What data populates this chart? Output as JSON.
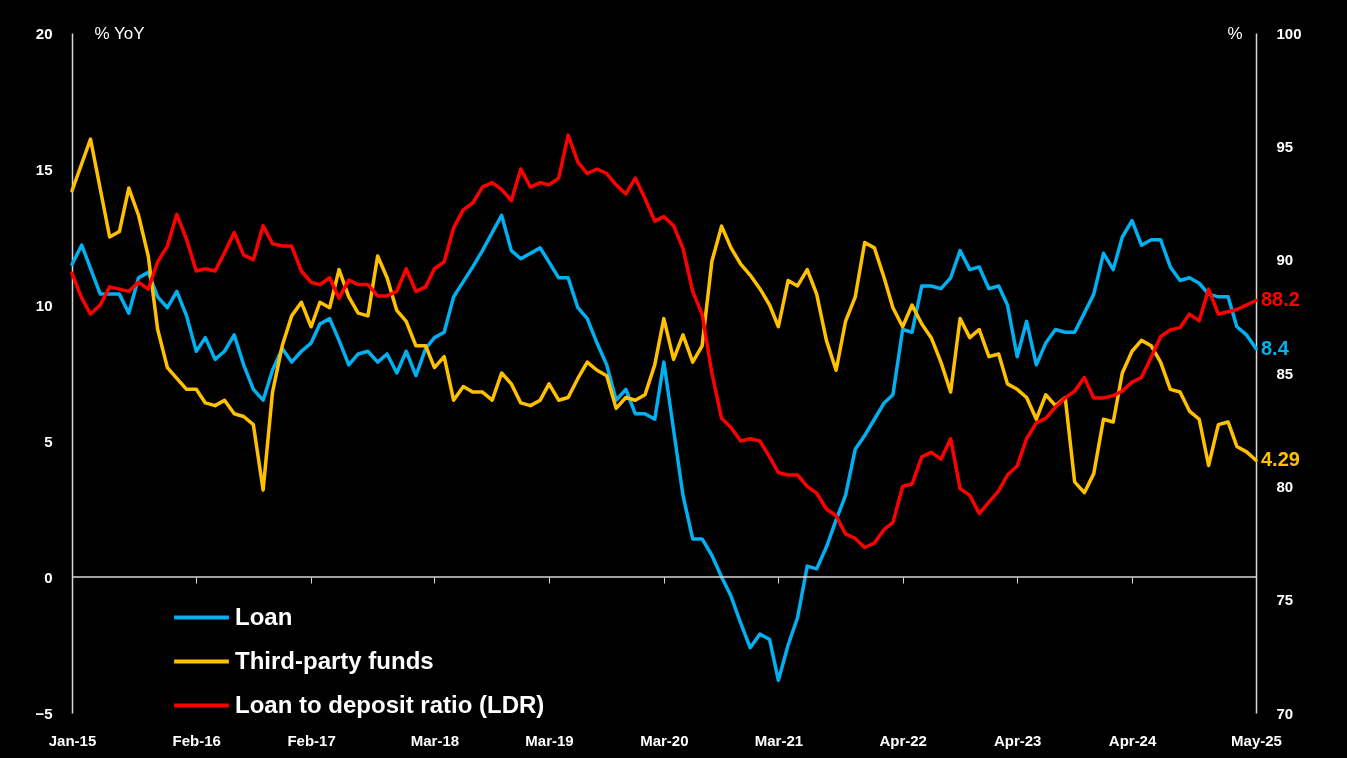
{
  "chart_data": {
    "type": "line",
    "ylabel": "% YoY",
    "y2label": "%",
    "x": [
      "2015-01",
      "2015-02",
      "2015-03",
      "2015-04",
      "2015-05",
      "2015-06",
      "2015-07",
      "2015-08",
      "2015-09",
      "2015-10",
      "2015-11",
      "2015-12",
      "2016-01",
      "2016-02",
      "2016-03",
      "2016-04",
      "2016-05",
      "2016-06",
      "2016-07",
      "2016-08",
      "2016-09",
      "2016-10",
      "2016-11",
      "2016-12",
      "2017-01",
      "2017-02",
      "2017-03",
      "2017-04",
      "2017-05",
      "2017-06",
      "2017-07",
      "2017-08",
      "2017-09",
      "2017-10",
      "2017-11",
      "2017-12",
      "2018-01",
      "2018-02",
      "2018-03",
      "2018-04",
      "2018-05",
      "2018-06",
      "2018-07",
      "2018-08",
      "2018-09",
      "2018-10",
      "2018-11",
      "2018-12",
      "2019-01",
      "2019-02",
      "2019-03",
      "2019-04",
      "2019-05",
      "2019-06",
      "2019-07",
      "2019-08",
      "2019-09",
      "2019-10",
      "2019-11",
      "2019-12",
      "2020-01",
      "2020-02",
      "2020-03",
      "2020-04",
      "2020-05",
      "2020-06",
      "2020-07",
      "2020-08",
      "2020-09",
      "2020-10",
      "2020-11",
      "2020-12",
      "2021-01",
      "2021-02",
      "2021-03",
      "2021-04",
      "2021-05",
      "2021-06",
      "2021-07",
      "2021-08",
      "2021-09",
      "2021-10",
      "2021-11",
      "2021-12",
      "2022-01",
      "2022-02",
      "2022-03",
      "2022-04",
      "2022-05",
      "2022-06",
      "2022-07",
      "2022-08",
      "2022-09",
      "2022-10",
      "2022-11",
      "2022-12",
      "2023-01",
      "2023-02",
      "2023-03",
      "2023-04",
      "2023-05",
      "2023-06",
      "2023-07",
      "2023-08",
      "2023-09",
      "2023-10",
      "2023-11",
      "2023-12",
      "2024-01",
      "2024-02",
      "2024-03",
      "2024-04",
      "2024-05",
      "2024-06",
      "2024-07",
      "2024-08",
      "2024-09",
      "2024-10",
      "2024-11",
      "2024-12",
      "2025-01",
      "2025-02",
      "2025-03",
      "2025-04",
      "2025-05"
    ],
    "xlim": [
      "2015-01",
      "2025-05"
    ],
    "xticks": [
      {
        "value": "2015-01",
        "label": "Jan-15"
      },
      {
        "value": "2016-02",
        "label": "Feb-16"
      },
      {
        "value": "2017-02",
        "label": "Feb-17"
      },
      {
        "value": "2018-03",
        "label": "Mar-18"
      },
      {
        "value": "2019-03",
        "label": "Mar-19"
      },
      {
        "value": "2020-03",
        "label": "Mar-20"
      },
      {
        "value": "2021-03",
        "label": "Mar-21"
      },
      {
        "value": "2022-04",
        "label": "Apr-22"
      },
      {
        "value": "2023-04",
        "label": "Apr-23"
      },
      {
        "value": "2024-04",
        "label": "Apr-24"
      },
      {
        "value": "2025-05",
        "label": "May-25"
      }
    ],
    "ylim": [
      -5,
      20
    ],
    "yticks": [
      -5,
      0,
      5,
      10,
      15,
      20
    ],
    "y2lim": [
      70,
      100
    ],
    "y2ticks": [
      70,
      75,
      80,
      85,
      90,
      95,
      100
    ],
    "ref_lines": [
      {
        "axis": "y",
        "value": 0,
        "color": "#d9d9d9"
      }
    ],
    "legend": "bottom left",
    "grid": false,
    "marker": "none",
    "line_style": "solid",
    "series": [
      {
        "name": "Loan",
        "color": "#00b0f0",
        "x": [
          "2015-01",
          "2015-02",
          "2015-04",
          "2015-06",
          "2015-07",
          "2015-08",
          "2015-09",
          "2015-10",
          "2015-11",
          "2015-12",
          "2016-01",
          "2016-02",
          "2016-03",
          "2016-04",
          "2016-05",
          "2016-06",
          "2016-07",
          "2016-08",
          "2016-09",
          "2016-10",
          "2016-11",
          "2016-12",
          "2017-01",
          "2017-02",
          "2017-03",
          "2017-04",
          "2017-05",
          "2017-06",
          "2017-07",
          "2017-08",
          "2017-09",
          "2017-10",
          "2017-11",
          "2017-12",
          "2018-01",
          "2018-02",
          "2018-03",
          "2018-04",
          "2018-05",
          "2018-07",
          "2018-08",
          "2018-10",
          "2018-11",
          "2018-12",
          "2019-02",
          "2019-04",
          "2019-05",
          "2019-06",
          "2019-07",
          "2019-08",
          "2019-09",
          "2019-10",
          "2019-11",
          "2019-12",
          "2020-01",
          "2020-02",
          "2020-03",
          "2020-05",
          "2020-06",
          "2020-07",
          "2020-08",
          "2020-09",
          "2020-10",
          "2020-11",
          "2020-12",
          "2021-01",
          "2021-02",
          "2021-03",
          "2021-04",
          "2021-05",
          "2021-06",
          "2021-07",
          "2021-08",
          "2021-09",
          "2021-10",
          "2021-11",
          "2021-12",
          "2022-01",
          "2022-02",
          "2022-03",
          "2022-04",
          "2022-05",
          "2022-06",
          "2022-07",
          "2022-08",
          "2022-09",
          "2022-10",
          "2022-11",
          "2022-12",
          "2023-01",
          "2023-02",
          "2023-03",
          "2023-04",
          "2023-05",
          "2023-06",
          "2023-07",
          "2023-08",
          "2023-09",
          "2023-10",
          "2023-11",
          "2023-12",
          "2024-01",
          "2024-02",
          "2024-03",
          "2024-04",
          "2024-05",
          "2024-06",
          "2024-07",
          "2024-08",
          "2024-09",
          "2024-10",
          "2024-11",
          "2024-12",
          "2025-01",
          "2025-02",
          "2025-03",
          "2025-04",
          "2025-05"
        ],
        "values": [
          11.5,
          12.2,
          10.4,
          10.4,
          9.7,
          11.0,
          11.2,
          10.3,
          9.9,
          10.5,
          9.6,
          8.3,
          8.8,
          8.0,
          8.3,
          8.9,
          7.8,
          6.9,
          6.5,
          7.6,
          8.4,
          7.9,
          8.3,
          8.6,
          9.3,
          9.5,
          8.7,
          7.8,
          8.2,
          8.3,
          7.9,
          8.2,
          7.5,
          8.3,
          7.4,
          8.4,
          8.8,
          9.0,
          10.3,
          11.4,
          12.0,
          13.3,
          12.0,
          11.7,
          12.1,
          11.0,
          11.0,
          9.9,
          9.5,
          8.6,
          7.8,
          6.5,
          6.9,
          6.0,
          6.0,
          5.8,
          7.9,
          3.0,
          1.4,
          1.4,
          0.8,
          0.0,
          -0.7,
          -1.7,
          -2.6,
          -2.1,
          -2.3,
          -3.8,
          -2.5,
          -1.5,
          0.4,
          0.3,
          1.1,
          2.1,
          3.0,
          4.7,
          5.2,
          5.8,
          6.4,
          6.7,
          9.1,
          9.0,
          10.7,
          10.7,
          10.6,
          11.0,
          12.0,
          11.3,
          11.4,
          10.6,
          10.7,
          10.0,
          8.1,
          9.4,
          7.8,
          8.6,
          9.1,
          9.0,
          9.0,
          9.7,
          10.4,
          11.9,
          11.3,
          12.5,
          13.1,
          12.2,
          12.4,
          12.4,
          11.4,
          10.9,
          11.0,
          10.8,
          10.4,
          10.3,
          10.3,
          9.2,
          8.9,
          8.4
        ],
        "value_labels": [
          null,
          null,
          null,
          null,
          null,
          null,
          null,
          null,
          null,
          null,
          null,
          null,
          null,
          null,
          null,
          null,
          null,
          null,
          null,
          null,
          null,
          null,
          null,
          null,
          null,
          null,
          null,
          null,
          null,
          null,
          null,
          null,
          null,
          null,
          null,
          null,
          null,
          null,
          null,
          null,
          null,
          null,
          null,
          null,
          null,
          null,
          null,
          null,
          null,
          null,
          null,
          null,
          null,
          null,
          null,
          null,
          null,
          null,
          null,
          null,
          null,
          null,
          null,
          null,
          null,
          null,
          null,
          null,
          null,
          null,
          null,
          null,
          null,
          null,
          null,
          null,
          null,
          null,
          null,
          null,
          null,
          null,
          null,
          null,
          null,
          null,
          null,
          null,
          null,
          null,
          null,
          null,
          null,
          null,
          null,
          null,
          null,
          null,
          null,
          null,
          null,
          null,
          null,
          null,
          null,
          null,
          null,
          null,
          null,
          null,
          null,
          null,
          null,
          null,
          null,
          null,
          null,
          "8.4"
        ]
      },
      {
        "name": "Third-party funds",
        "color": "#ffc000",
        "x": [
          "2015-01",
          "2015-03",
          "2015-05",
          "2015-06",
          "2015-07",
          "2015-08",
          "2015-09",
          "2015-10",
          "2015-11",
          "2015-12",
          "2016-01",
          "2016-02",
          "2016-03",
          "2016-04",
          "2016-05",
          "2016-06",
          "2016-07",
          "2016-08",
          "2016-09",
          "2016-10",
          "2016-11",
          "2016-12",
          "2017-01",
          "2017-02",
          "2017-03",
          "2017-04",
          "2017-05",
          "2017-06",
          "2017-07",
          "2017-08",
          "2017-09",
          "2017-10",
          "2017-11",
          "2017-12",
          "2018-01",
          "2018-02",
          "2018-03",
          "2018-04",
          "2018-05",
          "2018-06",
          "2018-07",
          "2018-08",
          "2018-09",
          "2018-10",
          "2018-11",
          "2018-12",
          "2019-01",
          "2019-02",
          "2019-03",
          "2019-04",
          "2019-05",
          "2019-06",
          "2019-07",
          "2019-08",
          "2019-09",
          "2019-10",
          "2019-11",
          "2019-12",
          "2020-01",
          "2020-02",
          "2020-03",
          "2020-04",
          "2020-05",
          "2020-06",
          "2020-07",
          "2020-08",
          "2020-09",
          "2020-10",
          "2020-11",
          "2020-12",
          "2021-01",
          "2021-02",
          "2021-03",
          "2021-04",
          "2021-05",
          "2021-06",
          "2021-07",
          "2021-08",
          "2021-09",
          "2021-10",
          "2021-11",
          "2021-12",
          "2022-01",
          "2022-02",
          "2022-03",
          "2022-04",
          "2022-05",
          "2022-06",
          "2022-07",
          "2022-08",
          "2022-09",
          "2022-10",
          "2022-11",
          "2022-12",
          "2023-01",
          "2023-02",
          "2023-03",
          "2023-04",
          "2023-05",
          "2023-06",
          "2023-07",
          "2023-08",
          "2023-09",
          "2023-10",
          "2023-11",
          "2023-12",
          "2024-01",
          "2024-02",
          "2024-03",
          "2024-04",
          "2024-05",
          "2024-06",
          "2024-07",
          "2024-08",
          "2024-09",
          "2024-10",
          "2024-11",
          "2024-12",
          "2025-01",
          "2025-02",
          "2025-03",
          "2025-04",
          "2025-05"
        ],
        "values": [
          14.2,
          16.1,
          12.5,
          12.7,
          14.3,
          13.3,
          11.8,
          9.1,
          7.7,
          7.3,
          6.9,
          6.9,
          6.4,
          6.3,
          6.5,
          6.0,
          5.9,
          5.6,
          3.2,
          6.8,
          8.5,
          9.6,
          10.1,
          9.2,
          10.1,
          9.9,
          11.3,
          10.3,
          9.7,
          9.6,
          11.8,
          11.0,
          9.8,
          9.4,
          8.5,
          8.5,
          7.7,
          8.1,
          6.5,
          7.0,
          6.8,
          6.8,
          6.5,
          7.5,
          7.1,
          6.4,
          6.3,
          6.5,
          7.1,
          6.5,
          6.6,
          7.3,
          7.9,
          7.6,
          7.4,
          6.2,
          6.6,
          6.5,
          6.7,
          7.8,
          9.5,
          8.0,
          8.9,
          7.9,
          8.5,
          11.6,
          12.9,
          12.1,
          11.5,
          11.1,
          10.6,
          10.0,
          9.2,
          10.9,
          10.7,
          11.3,
          10.4,
          8.7,
          7.6,
          9.4,
          10.3,
          12.3,
          12.1,
          11.0,
          9.9,
          9.2,
          10.0,
          9.3,
          8.8,
          7.9,
          6.8,
          9.5,
          8.8,
          9.1,
          8.1,
          8.2,
          7.1,
          6.9,
          6.6,
          5.8,
          6.7,
          6.3,
          6.6,
          3.5,
          3.1,
          3.8,
          5.8,
          5.7,
          7.5,
          8.3,
          8.7,
          8.5,
          7.9,
          6.9,
          6.8,
          6.1,
          5.8,
          4.1,
          5.6,
          5.7,
          4.8,
          4.6,
          4.29
        ],
        "value_labels": [
          null,
          null,
          null,
          null,
          null,
          null,
          null,
          null,
          null,
          null,
          null,
          null,
          null,
          null,
          null,
          null,
          null,
          null,
          null,
          null,
          null,
          null,
          null,
          null,
          null,
          null,
          null,
          null,
          null,
          null,
          null,
          null,
          null,
          null,
          null,
          null,
          null,
          null,
          null,
          null,
          null,
          null,
          null,
          null,
          null,
          null,
          null,
          null,
          null,
          null,
          null,
          null,
          null,
          null,
          null,
          null,
          null,
          null,
          null,
          null,
          null,
          null,
          null,
          null,
          null,
          null,
          null,
          null,
          null,
          null,
          null,
          null,
          null,
          null,
          null,
          null,
          null,
          null,
          null,
          null,
          null,
          null,
          null,
          null,
          null,
          null,
          null,
          null,
          null,
          null,
          null,
          null,
          null,
          null,
          null,
          null,
          null,
          null,
          null,
          null,
          null,
          null,
          null,
          null,
          null,
          null,
          null,
          null,
          null,
          null,
          null,
          null,
          null,
          null,
          null,
          null,
          null,
          null,
          null,
          null,
          null,
          null,
          "4.29"
        ]
      },
      {
        "name": "Loan to deposit ratio (LDR)",
        "color": "#ff0000",
        "axis": "y2",
        "values": [
          89.4,
          88.3,
          87.6,
          88.0,
          88.8,
          88.7,
          88.6,
          89.0,
          88.7,
          89.9,
          90.6,
          92.0,
          90.9,
          89.5,
          89.6,
          89.5,
          90.3,
          91.2,
          90.2,
          90.0,
          91.5,
          90.7,
          90.6,
          90.6,
          89.5,
          89.0,
          88.9,
          89.2,
          88.3,
          89.1,
          88.9,
          88.9,
          88.4,
          88.4,
          88.6,
          89.6,
          88.6,
          88.8,
          89.6,
          89.9,
          91.4,
          92.2,
          92.5,
          93.2,
          93.4,
          93.1,
          92.6,
          94.0,
          93.2,
          93.4,
          93.3,
          93.6,
          95.5,
          94.3,
          93.8,
          94.0,
          93.8,
          93.3,
          92.9,
          93.6,
          92.7,
          91.7,
          91.9,
          91.5,
          90.5,
          88.6,
          87.6,
          85.0,
          83.0,
          82.6,
          82.0,
          82.1,
          82.0,
          81.3,
          80.6,
          80.5,
          80.5,
          80.0,
          79.7,
          79.0,
          78.7,
          77.9,
          77.7,
          77.3,
          77.5,
          78.1,
          78.4,
          80.0,
          80.1,
          81.3,
          81.5,
          81.2,
          82.1,
          79.9,
          79.6,
          78.8,
          79.3,
          79.8,
          80.5,
          80.9,
          82.1,
          82.8,
          83.0,
          83.5,
          83.9,
          84.2,
          84.8,
          83.9,
          83.9,
          84.0,
          84.2,
          84.6,
          84.8,
          85.7,
          86.6,
          86.9,
          87.0,
          87.6,
          87.3,
          88.7,
          87.6,
          87.7,
          87.8,
          88.0,
          88.2
        ],
        "value_labels": [
          null,
          null,
          null,
          null,
          null,
          null,
          null,
          null,
          null,
          null,
          null,
          null,
          null,
          null,
          null,
          null,
          null,
          null,
          null,
          null,
          null,
          null,
          null,
          null,
          null,
          null,
          null,
          null,
          null,
          null,
          null,
          null,
          null,
          null,
          null,
          null,
          null,
          null,
          null,
          null,
          null,
          null,
          null,
          null,
          null,
          null,
          null,
          null,
          null,
          null,
          null,
          null,
          null,
          null,
          null,
          null,
          null,
          null,
          null,
          null,
          null,
          null,
          null,
          null,
          null,
          null,
          null,
          null,
          null,
          null,
          null,
          null,
          null,
          null,
          null,
          null,
          null,
          null,
          null,
          null,
          null,
          null,
          null,
          null,
          null,
          null,
          null,
          null,
          null,
          null,
          null,
          null,
          null,
          null,
          null,
          null,
          null,
          null,
          null,
          null,
          null,
          null,
          null,
          null,
          null,
          null,
          null,
          null,
          null,
          null,
          null,
          null,
          null,
          null,
          null,
          null,
          null,
          null,
          null,
          null,
          null,
          null,
          null,
          null,
          "88.2"
        ]
      }
    ]
  }
}
